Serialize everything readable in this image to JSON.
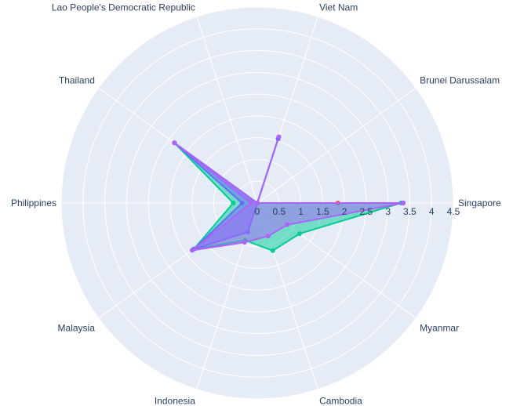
{
  "chart_data": {
    "type": "radar",
    "title": "",
    "categories": [
      "Singapore",
      "Brunei Darussalam",
      "Viet Nam",
      "Lao People's Democratic Republic",
      "Thailand",
      "Philippines",
      "Malaysia",
      "Indonesia",
      "Cambodia",
      "Myanmar"
    ],
    "radial_range": [
      0,
      4.5
    ],
    "radial_ticks": [
      "0",
      "0.5",
      "1",
      "1.5",
      "2",
      "2.5",
      "3",
      "3.5",
      "4",
      "4.5"
    ],
    "grid": true,
    "legend": "none",
    "series": [
      {
        "color": "#EF553B",
        "values": [
          1.85,
          0.0,
          0.0,
          0.0,
          0.0,
          0.0,
          0.0,
          0.0,
          0.0,
          0.0
        ]
      },
      {
        "color": "#00CC96",
        "values": [
          3.3,
          0.0,
          1.55,
          0.0,
          2.35,
          0.55,
          1.8,
          0.9,
          1.15,
          1.2
        ]
      },
      {
        "color": "#636EFA",
        "values": [
          3.35,
          0.0,
          1.55,
          0.0,
          2.35,
          0.35,
          1.8,
          0.7,
          0.0,
          0.0
        ]
      },
      {
        "color": "#AB63FA",
        "values": [
          3.35,
          0.0,
          1.6,
          0.0,
          2.35,
          0.15,
          1.85,
          0.95,
          0.8,
          0.85
        ]
      }
    ],
    "colors": {
      "background": "#E5ECF6",
      "grid": "#FFFFFF",
      "text": "#2A3F5F"
    }
  }
}
